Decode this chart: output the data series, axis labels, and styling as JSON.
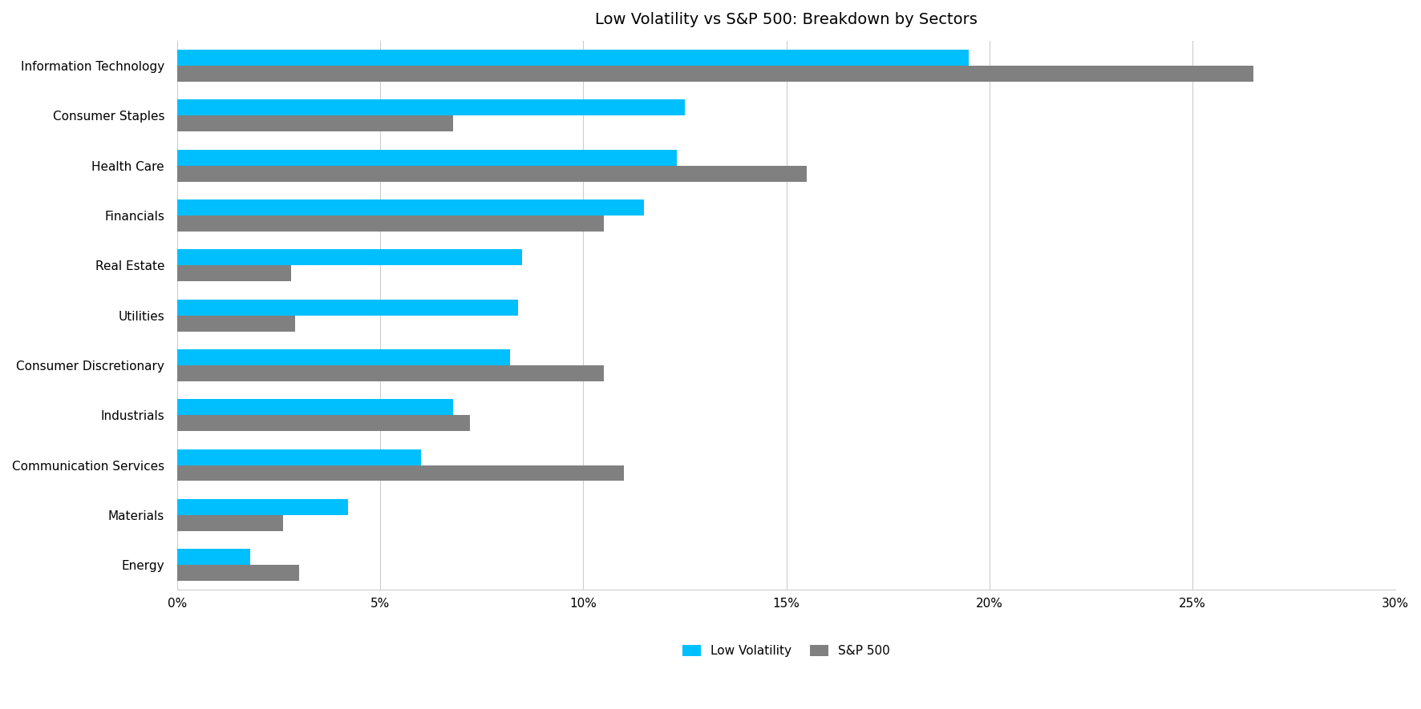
{
  "title": "Low Volatility vs S&P 500: Breakdown by Sectors",
  "sectors": [
    "Information Technology",
    "Consumer Staples",
    "Health Care",
    "Financials",
    "Real Estate",
    "Utilities",
    "Consumer Discretionary",
    "Industrials",
    "Communication Services",
    "Materials",
    "Energy"
  ],
  "low_vol": [
    19.5,
    12.5,
    12.3,
    11.5,
    8.5,
    8.4,
    8.2,
    6.8,
    6.0,
    4.2,
    1.8
  ],
  "sp500": [
    26.5,
    6.8,
    15.5,
    10.5,
    2.8,
    2.9,
    10.5,
    7.2,
    11.0,
    2.6,
    3.0
  ],
  "low_vol_color": "#00BFFF",
  "sp500_color": "#808080",
  "background_color": "#FFFFFF",
  "title_fontsize": 14,
  "label_fontsize": 11,
  "tick_fontsize": 11,
  "legend_fontsize": 11,
  "bar_height": 0.32,
  "xlim": [
    0,
    30
  ],
  "xticks": [
    0,
    5,
    10,
    15,
    20,
    25,
    30
  ],
  "xtick_labels": [
    "0%",
    "5%",
    "10%",
    "15%",
    "20%",
    "25%",
    "30%"
  ]
}
